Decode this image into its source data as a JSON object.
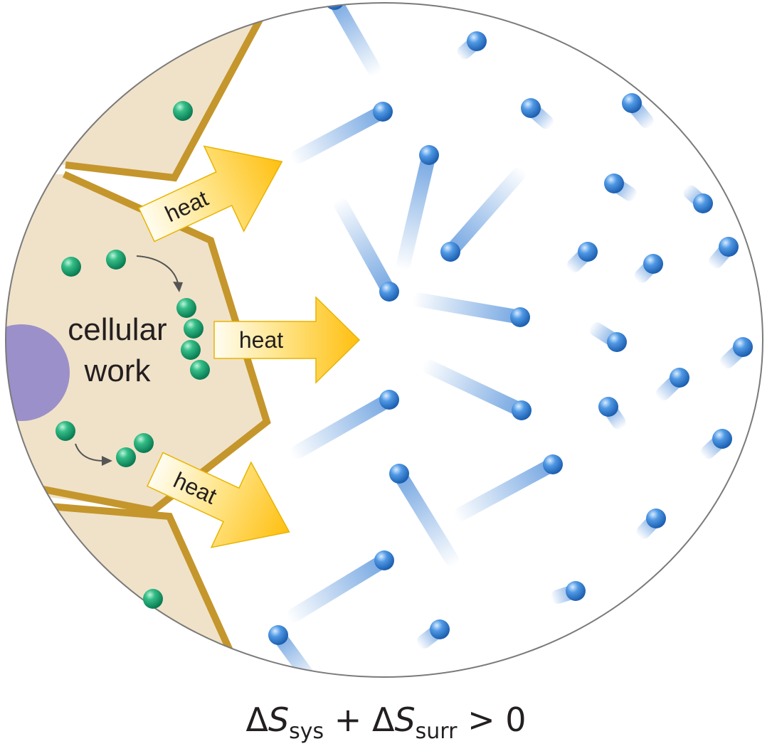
{
  "labels": {
    "cell_text_line1": "cellular",
    "cell_text_line2": "work",
    "heat_top": "heat",
    "heat_middle": "heat",
    "heat_bottom": "heat"
  },
  "equation": {
    "delta": "Δ",
    "S": "S",
    "sys": "sys",
    "plus": "+",
    "surr": "surr",
    "gt": ">",
    "zero": "0"
  },
  "colors": {
    "cell_fill": "#f0e2c8",
    "membrane": "#c4962c",
    "arrow_light": "#fffbe8",
    "arrow_dark": "#ffc20e",
    "arrow_stroke": "#e8b400",
    "green_particle": "#13a06f",
    "blue_particle": "#3b84d6",
    "nucleus": "#9b90c9",
    "circle_outline": "#7a7a7a",
    "text": "#231f20"
  }
}
